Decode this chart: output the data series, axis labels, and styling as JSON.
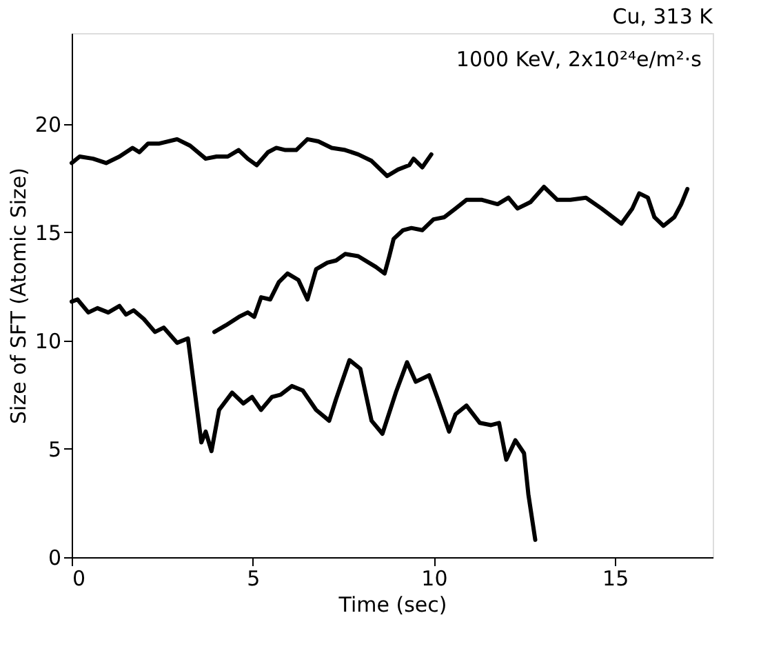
{
  "chart_data": {
    "type": "line",
    "title": "Cu, 313 K",
    "xlabel": "Time (sec)",
    "ylabel": "Size of SFT (Atomic Size)",
    "annotations": [
      "1000 KeV, 2x10²⁴e/m²·s"
    ],
    "xlim": [
      0,
      17.7
    ],
    "ylim": [
      0,
      24.2
    ],
    "xticks": [
      0,
      5,
      10,
      15
    ],
    "yticks": [
      0,
      5,
      10,
      15,
      20
    ],
    "grid": false,
    "line_style": "solid",
    "series": [
      {
        "color": "#000000",
        "x": [
          0,
          0.22,
          0.59,
          0.95,
          1.32,
          1.68,
          1.87,
          2.11,
          2.42,
          2.91,
          3.27,
          3.7,
          4.0,
          4.31,
          4.61,
          4.86,
          5.11,
          5.42,
          5.65,
          5.9,
          6.2,
          6.51,
          6.81,
          7.18,
          7.55,
          7.91,
          8.28,
          8.71,
          9.01,
          9.32,
          9.44,
          9.68,
          9.93
        ],
        "values": [
          18.2,
          18.5,
          18.4,
          18.2,
          18.5,
          18.9,
          18.7,
          19.1,
          19.1,
          19.3,
          19.0,
          18.4,
          18.5,
          18.5,
          18.8,
          18.4,
          18.1,
          18.7,
          18.9,
          18.8,
          18.8,
          19.3,
          19.2,
          18.9,
          18.8,
          18.6,
          18.3,
          17.6,
          17.9,
          18.1,
          18.4,
          18.0,
          18.6
        ]
      },
      {
        "color": "#000000",
        "x": [
          3.94,
          4.25,
          4.62,
          4.86,
          5.04,
          5.23,
          5.48,
          5.72,
          5.96,
          6.26,
          6.51,
          6.75,
          7.06,
          7.3,
          7.55,
          7.91,
          8.4,
          8.64,
          8.77,
          8.89,
          9.15,
          9.38,
          9.68,
          9.99,
          10.29,
          10.6,
          10.9,
          11.33,
          11.76,
          12.06,
          12.31,
          12.67,
          13.04,
          13.41,
          13.77,
          14.2,
          14.63,
          15.18,
          15.48,
          15.67,
          15.91,
          16.09,
          16.34,
          16.64,
          16.83,
          17.0
        ],
        "values": [
          10.4,
          10.7,
          11.1,
          11.3,
          11.1,
          12.0,
          11.9,
          12.7,
          13.1,
          12.8,
          11.9,
          13.3,
          13.6,
          13.7,
          14.0,
          13.9,
          13.4,
          13.1,
          13.9,
          14.7,
          15.1,
          15.2,
          15.1,
          15.6,
          15.7,
          16.1,
          16.5,
          16.5,
          16.3,
          16.6,
          16.1,
          16.4,
          17.1,
          16.5,
          16.5,
          16.6,
          16.1,
          15.4,
          16.1,
          16.8,
          16.6,
          15.7,
          15.3,
          15.7,
          16.3,
          17.0
        ]
      },
      {
        "color": "#000000",
        "x": [
          0,
          0.16,
          0.46,
          0.71,
          1.01,
          1.32,
          1.5,
          1.71,
          1.99,
          2.3,
          2.54,
          2.91,
          3.21,
          3.58,
          3.7,
          3.86,
          4.07,
          4.43,
          4.74,
          4.98,
          5.23,
          5.53,
          5.77,
          6.08,
          6.38,
          6.75,
          7.11,
          7.3,
          7.67,
          7.97,
          8.28,
          8.58,
          8.95,
          9.26,
          9.5,
          9.87,
          10.11,
          10.42,
          10.6,
          10.9,
          11.27,
          11.58,
          11.8,
          12.0,
          12.25,
          12.49,
          12.61,
          12.8
        ],
        "values": [
          11.8,
          11.9,
          11.3,
          11.5,
          11.3,
          11.6,
          11.2,
          11.4,
          11.0,
          10.4,
          10.6,
          9.9,
          10.1,
          5.3,
          5.8,
          4.9,
          6.8,
          7.6,
          7.1,
          7.4,
          6.8,
          7.4,
          7.5,
          7.9,
          7.7,
          6.8,
          6.3,
          7.3,
          9.1,
          8.7,
          6.3,
          5.7,
          7.6,
          9.0,
          8.1,
          8.4,
          7.3,
          5.8,
          6.6,
          7.0,
          6.2,
          6.1,
          6.2,
          4.5,
          5.4,
          4.8,
          2.9,
          0.8
        ]
      }
    ]
  }
}
